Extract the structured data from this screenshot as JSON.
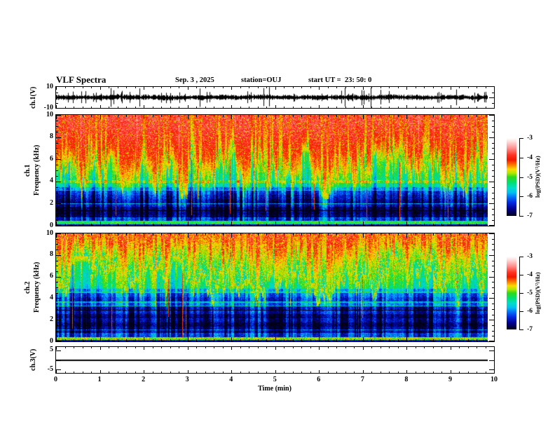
{
  "title": "VLF Spectra",
  "header": {
    "date": "Sep. 3 , 2025",
    "station": "station=OUJ",
    "start_ut": "start UT =  23: 50: 0"
  },
  "xaxis": {
    "label": "Time (min)",
    "tick_labels": [
      "0",
      "1",
      "2",
      "3",
      "4",
      "5",
      "6",
      "7",
      "8",
      "9",
      "10"
    ],
    "range_min": [
      0,
      10
    ]
  },
  "panels": [
    {
      "name": "ch1-voltage",
      "ylabel": "ch.1(V)",
      "ytick_labels": [
        "10",
        "-10"
      ],
      "ylim_v": [
        -10,
        10
      ]
    },
    {
      "name": "ch1-spectrogram",
      "ylabel_line1": "ch.1",
      "ylabel_line2": "Frequency (kHz)",
      "ytick_labels": [
        "10",
        "8",
        "6",
        "4",
        "2",
        "0"
      ],
      "ylim_khz": [
        0,
        10
      ]
    },
    {
      "name": "ch2-spectrogram",
      "ylabel_line1": "ch.2",
      "ylabel_line2": "Frequency (kHz)",
      "ytick_labels": [
        "10",
        "8",
        "6",
        "4",
        "2",
        "0"
      ],
      "ylim_khz": [
        0,
        10
      ]
    },
    {
      "name": "ch3-voltage",
      "ylabel": "ch.3(V)",
      "ytick_labels": [
        "5",
        "-5"
      ],
      "flat_value_v": 0
    }
  ],
  "colorbars": [
    {
      "label": "log(PSD)(V²/Hz)",
      "tick_labels": [
        "-3",
        "-4",
        "-5",
        "-6",
        "-7"
      ],
      "range": [
        -7,
        -3
      ]
    },
    {
      "label": "log(PSD)(V²/Hz)",
      "tick_labels": [
        "-3",
        "-4",
        "-5",
        "-6",
        "-7"
      ],
      "range": [
        -7,
        -3
      ]
    }
  ],
  "colormap": {
    "stops": [
      [
        0.0,
        "#ffffff"
      ],
      [
        0.05,
        "#ffd8d8"
      ],
      [
        0.13,
        "#ff9090"
      ],
      [
        0.22,
        "#ff3020"
      ],
      [
        0.28,
        "#f01800"
      ],
      [
        0.34,
        "#ff7000"
      ],
      [
        0.4,
        "#ffd800"
      ],
      [
        0.45,
        "#b0e800"
      ],
      [
        0.5,
        "#30d818"
      ],
      [
        0.57,
        "#00e070"
      ],
      [
        0.64,
        "#00dcc8"
      ],
      [
        0.7,
        "#00c0f0"
      ],
      [
        0.76,
        "#0070f8"
      ],
      [
        0.83,
        "#0028e0"
      ],
      [
        0.91,
        "#000090"
      ],
      [
        1.0,
        "#000018"
      ]
    ]
  },
  "chart_data": [
    {
      "type": "line",
      "panel": "ch.1(V) waveform",
      "xlim": [
        0,
        10
      ],
      "xlabel": "Time (min)",
      "ylim": [
        -10,
        10
      ],
      "yticks": [
        10,
        -10
      ],
      "data_extent_min": [
        0,
        9.83
      ],
      "description": "Dense noisy voltage trace centered on 0 V with frequent impulsive spikes reaching toward +/-10 V across the full record."
    },
    {
      "type": "heatmap",
      "panel": "ch.1 spectrogram",
      "xlim": [
        0,
        10
      ],
      "ylim": [
        0,
        10
      ],
      "ylabel": "ch.1 Frequency (kHz)",
      "yticks": [
        0,
        2,
        4,
        6,
        8,
        10
      ],
      "colorbar": {
        "label": "log(PSD)(V²/Hz)",
        "ticks": [
          -3,
          -4,
          -5,
          -6,
          -7
        ]
      },
      "description": "Broadband hiss: high PSD (log PSD ~ -3.5 to -4, red/orange with yellow vertical striations) above ~4.5 kHz; flame-like green transition near 4-4.5 kHz; log PSD ~ -5 to -6 (green/cyan) from 2-4 kHz; low PSD ~ -6 to -7 (blue/dark) below ~3 kHz with dark horizontal bands; thin bright green band near 0 kHz; sparse red vertical impulse lines crossing the low-frequency region."
    },
    {
      "type": "heatmap",
      "panel": "ch.2 spectrogram",
      "xlim": [
        0,
        10
      ],
      "ylim": [
        0,
        10
      ],
      "ylabel": "ch.2 Frequency (kHz)",
      "yticks": [
        0,
        2,
        4,
        6,
        8,
        10
      ],
      "colorbar": {
        "label": "log(PSD)(V²/Hz)",
        "ticks": [
          -3,
          -4,
          -5,
          -6,
          -7
        ]
      },
      "description": "Similar broadband hiss but with stronger yellow striation mixed into the red zone; smooth red-yellow-green gradient down to ~4 kHz; cyan/blue region below ~4.5 kHz with pronounced dark horizontal banding between 0.8 and 4 kHz; bright green/yellow band at the lowest frequencies."
    },
    {
      "type": "line",
      "panel": "ch.3(V) waveform",
      "xlim": [
        0,
        10
      ],
      "ylim_ticks": [
        5,
        -5
      ],
      "description": "Perfectly flat line at 0 V for the whole interval."
    }
  ]
}
